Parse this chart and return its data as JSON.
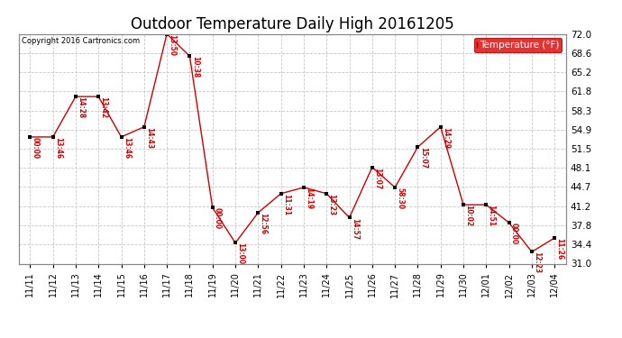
{
  "title": "Outdoor Temperature Daily High 20161205",
  "copyright_text": "Copyright 2016 Cartronics.com",
  "legend_label": "Temperature (°F)",
  "x_labels": [
    "11/11",
    "11/12",
    "11/13",
    "11/14",
    "11/15",
    "11/16",
    "11/17",
    "11/18",
    "11/19",
    "11/20",
    "11/21",
    "11/22",
    "11/23",
    "11/24",
    "11/25",
    "11/26",
    "11/27",
    "11/28",
    "11/29",
    "11/30",
    "12/01",
    "12/02",
    "12/03",
    "12/04"
  ],
  "y_values": [
    53.6,
    53.6,
    60.8,
    60.8,
    53.6,
    55.4,
    72.0,
    68.0,
    41.0,
    34.7,
    40.1,
    43.5,
    44.6,
    43.5,
    39.2,
    48.2,
    44.6,
    51.8,
    55.4,
    41.5,
    41.5,
    38.3,
    33.1,
    35.6
  ],
  "point_labels": [
    "00:00",
    "13:46",
    "14:28",
    "13:42",
    "13:46",
    "14:43",
    "13:50",
    "10:38",
    "00:00",
    "13:00",
    "12:56",
    "11:31",
    "14:19",
    "13:23",
    "14:57",
    "13:07",
    "58:30",
    "15:07",
    "14:29",
    "10:02",
    "14:51",
    "00:00",
    "12:23",
    "11:26"
  ],
  "line_color": "#cc0000",
  "marker_color": "#000000",
  "background_color": "#ffffff",
  "grid_color": "#c8c8c8",
  "y_min": 31.0,
  "y_max": 72.0,
  "y_ticks": [
    31.0,
    34.4,
    37.8,
    41.2,
    44.7,
    48.1,
    51.5,
    54.9,
    58.3,
    61.8,
    65.2,
    68.6,
    72.0
  ],
  "title_fontsize": 12,
  "legend_bg": "#dd0000",
  "legend_text_color": "#ffffff"
}
